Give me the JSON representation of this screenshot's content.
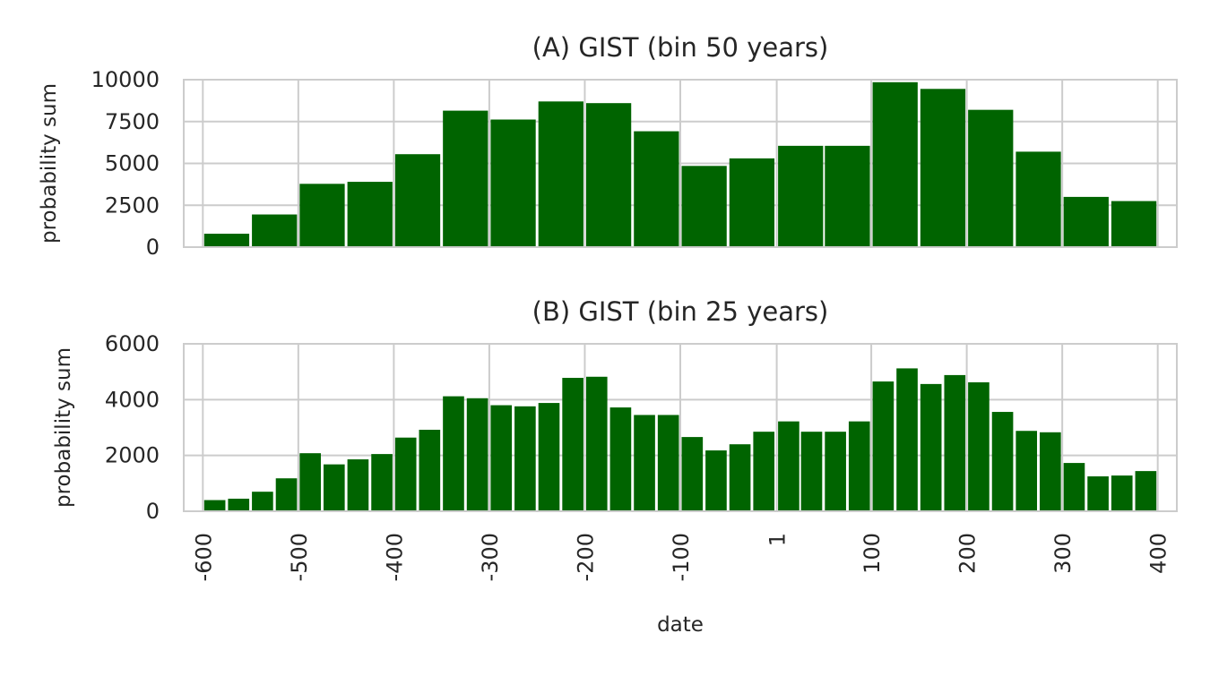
{
  "chart_data": [
    {
      "type": "bar",
      "title": "(A) GIST (bin 50 years)",
      "xlabel": "",
      "ylabel": "probability sum",
      "ylim": [
        0,
        10000
      ],
      "yticks": [
        "0",
        "2500",
        "5000",
        "7500",
        "10000"
      ],
      "xlim": [
        -620,
        420
      ],
      "bin_width": 50,
      "grid": true,
      "bin_starts": [
        -600,
        -550,
        -500,
        -450,
        -400,
        -350,
        -300,
        -250,
        -200,
        -150,
        -100,
        -50,
        1,
        50,
        100,
        150,
        200,
        250,
        300,
        350
      ],
      "values": [
        800,
        1950,
        3780,
        3900,
        5550,
        8150,
        7620,
        8700,
        8600,
        6920,
        4850,
        5300,
        6050,
        6050,
        9850,
        9450,
        8200,
        5700,
        3000,
        2750
      ],
      "color": "#006400"
    },
    {
      "type": "bar",
      "title": "(B) GIST (bin 25 years)",
      "xlabel": "date",
      "ylabel": "probability sum",
      "ylim": [
        0,
        6000
      ],
      "yticks": [
        "0",
        "2000",
        "4000",
        "6000"
      ],
      "xlim": [
        -620,
        420
      ],
      "xticks": [
        -600,
        -500,
        -400,
        -300,
        -200,
        -100,
        1,
        100,
        200,
        300,
        400
      ],
      "xtick_labels": [
        "-600",
        "-500",
        "-400",
        "-300",
        "-200",
        "-100",
        "1",
        "100",
        "200",
        "300",
        "400"
      ],
      "bin_width": 25,
      "grid": true,
      "bin_starts": [
        -600,
        -575,
        -550,
        -525,
        -500,
        -475,
        -450,
        -425,
        -400,
        -375,
        -350,
        -325,
        -300,
        -275,
        -250,
        -225,
        -200,
        -175,
        -150,
        -125,
        -100,
        -75,
        -50,
        -25,
        1,
        25,
        50,
        75,
        100,
        125,
        150,
        175,
        200,
        225,
        250,
        275,
        300,
        325,
        350,
        375
      ],
      "values": [
        400,
        450,
        700,
        1180,
        2080,
        1680,
        1860,
        2050,
        2640,
        2920,
        4120,
        4050,
        3800,
        3760,
        3880,
        4780,
        4820,
        3720,
        3450,
        3450,
        2660,
        2180,
        2400,
        2850,
        3220,
        2850,
        2850,
        3220,
        4650,
        5120,
        4560,
        4880,
        4620,
        3560,
        2880,
        2830,
        1730,
        1250,
        1280,
        1440
      ],
      "color": "#006400"
    }
  ]
}
